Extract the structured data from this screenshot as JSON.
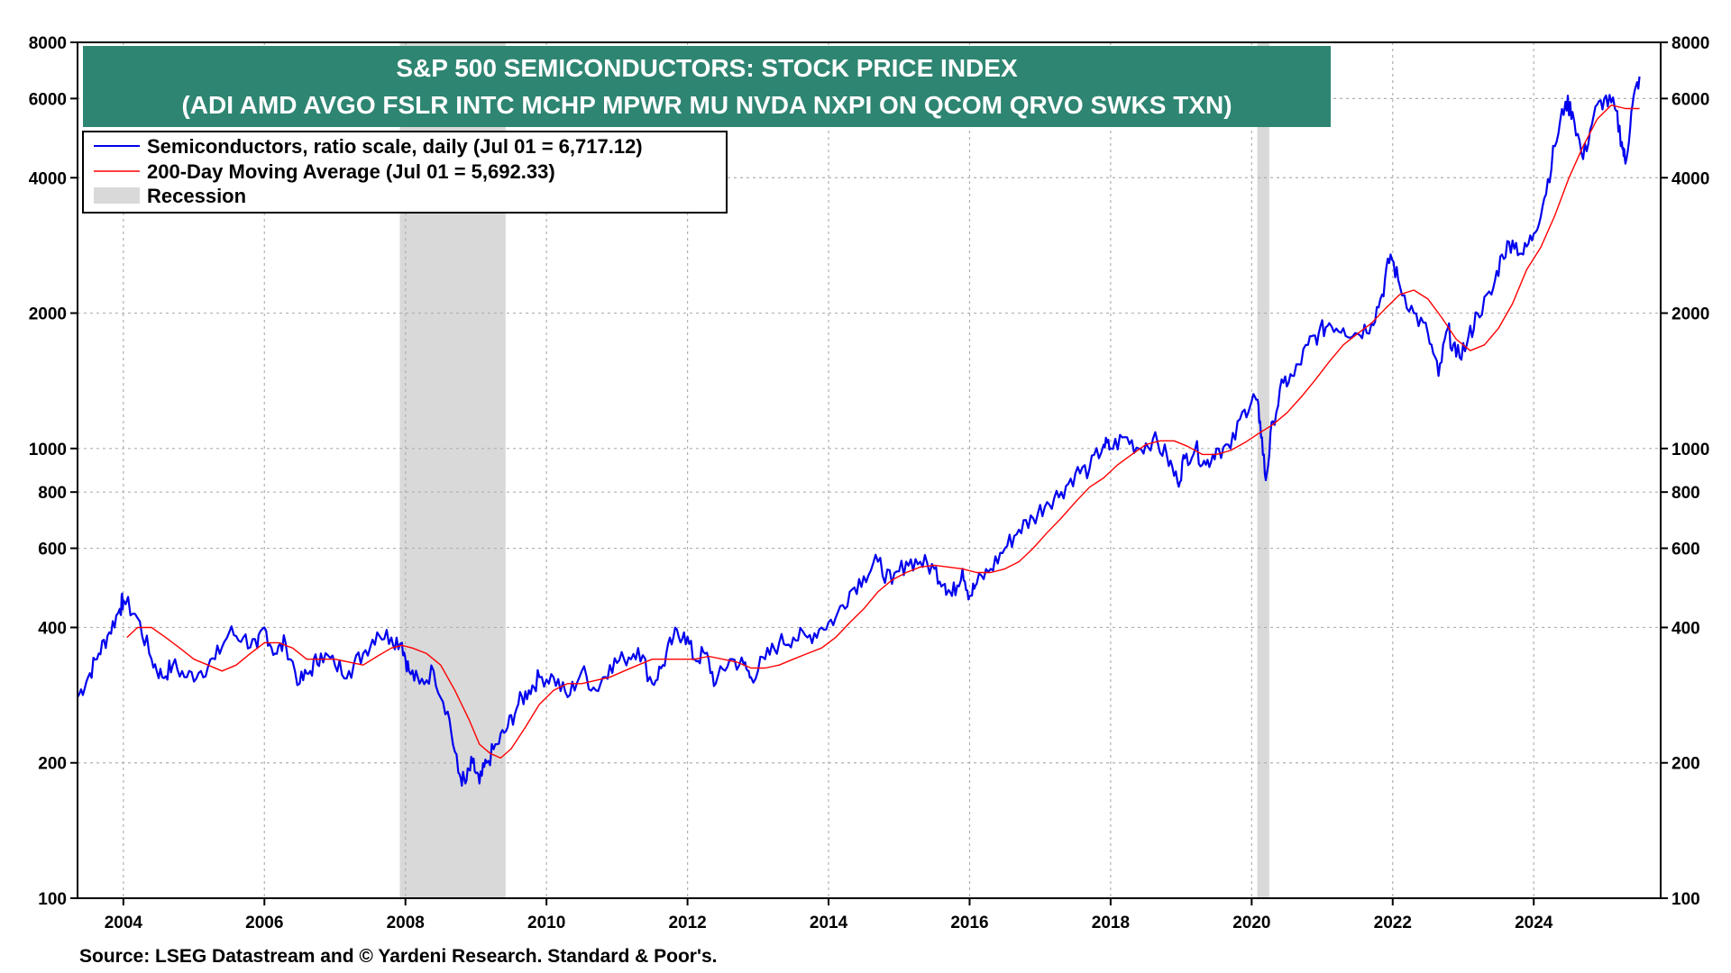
{
  "chart_data": {
    "type": "line",
    "title": "S&P 500 SEMICONDUCTORS: STOCK PRICE INDEX",
    "subtitle": "(ADI AMD AVGO FSLR INTC MCHP MPWR MU NVDA NXPI ON QCOM QRVO SWKS TXN)",
    "source": "Source: LSEG Datastream and © Yardeni Research. Standard & Poor's.",
    "y_scale": "log",
    "ylim": [
      100,
      8000
    ],
    "xlim": [
      2003.35,
      2025.8
    ],
    "grid": true,
    "legend_position": "top-left",
    "y_ticks": [
      {
        "value": 100,
        "label": "100"
      },
      {
        "value": 200,
        "label": "200"
      },
      {
        "value": 400,
        "label": "400"
      },
      {
        "value": 600,
        "label": "600"
      },
      {
        "value": 800,
        "label": "800"
      },
      {
        "value": 1000,
        "label": "1000"
      },
      {
        "value": 2000,
        "label": "2000"
      },
      {
        "value": 4000,
        "label": "4000"
      },
      {
        "value": 6000,
        "label": "6000"
      },
      {
        "value": 8000,
        "label": "8000"
      }
    ],
    "x_ticks": [
      {
        "value": 2004,
        "label": "2004"
      },
      {
        "value": 2006,
        "label": "2006"
      },
      {
        "value": 2008,
        "label": "2008"
      },
      {
        "value": 2010,
        "label": "2010"
      },
      {
        "value": 2012,
        "label": "2012"
      },
      {
        "value": 2014,
        "label": "2014"
      },
      {
        "value": 2016,
        "label": "2016"
      },
      {
        "value": 2018,
        "label": "2018"
      },
      {
        "value": 2020,
        "label": "2020"
      },
      {
        "value": 2022,
        "label": "2022"
      },
      {
        "value": 2024,
        "label": "2024"
      }
    ],
    "recessions": [
      {
        "start": 2007.92,
        "end": 2009.42
      },
      {
        "start": 2020.08,
        "end": 2020.25
      }
    ],
    "legend": [
      {
        "label": "Semiconductors, ratio scale, daily (Jul 01 = 6,717.12)",
        "color": "#0000ee",
        "kind": "line"
      },
      {
        "label": "200-Day Moving Average (Jul 01 = 5,692.33)",
        "color": "#ff0000",
        "kind": "line"
      },
      {
        "label": "Recession",
        "color": "#d9d9d9",
        "kind": "box"
      }
    ],
    "colors": {
      "title_bg": "#2e8572",
      "recession": "#d9d9d9",
      "grid": "#b0b0b0"
    },
    "series": [
      {
        "name": "Semiconductors, ratio scale, daily (Jul 01 = 6,717.12)",
        "color": "#0000ee",
        "x": [
          2003.35,
          2003.5,
          2003.65,
          2003.8,
          2003.95,
          2004.0,
          2004.2,
          2004.4,
          2004.55,
          2004.7,
          2004.9,
          2005.1,
          2005.3,
          2005.5,
          2005.7,
          2005.9,
          2006.0,
          2006.15,
          2006.3,
          2006.5,
          2006.65,
          2006.8,
          2007.0,
          2007.2,
          2007.4,
          2007.6,
          2007.8,
          2007.95,
          2008.05,
          2008.2,
          2008.4,
          2008.6,
          2008.75,
          2008.85,
          2008.95,
          2009.05,
          2009.15,
          2009.3,
          2009.45,
          2009.6,
          2009.75,
          2009.9,
          2010.1,
          2010.3,
          2010.5,
          2010.7,
          2010.9,
          2011.1,
          2011.3,
          2011.5,
          2011.65,
          2011.8,
          2011.95,
          2012.1,
          2012.25,
          2012.4,
          2012.6,
          2012.8,
          2012.9,
          2013.1,
          2013.3,
          2013.5,
          2013.7,
          2013.9,
          2014.1,
          2014.3,
          2014.5,
          2014.7,
          2014.9,
          2015.1,
          2015.3,
          2015.5,
          2015.65,
          2015.75,
          2015.9,
          2016.0,
          2016.1,
          2016.3,
          2016.5,
          2016.7,
          2016.9,
          2017.1,
          2017.3,
          2017.5,
          2017.7,
          2017.9,
          2018.0,
          2018.2,
          2018.4,
          2018.6,
          2018.8,
          2018.95,
          2019.05,
          2019.2,
          2019.35,
          2019.5,
          2019.7,
          2019.9,
          2020.05,
          2020.12,
          2020.2,
          2020.3,
          2020.45,
          2020.6,
          2020.8,
          2020.95,
          2021.1,
          2021.3,
          2021.5,
          2021.7,
          2021.85,
          2021.97,
          2022.1,
          2022.3,
          2022.5,
          2022.65,
          2022.78,
          2022.9,
          2023.05,
          2023.2,
          2023.4,
          2023.55,
          2023.7,
          2023.85,
          2024.0,
          2024.15,
          2024.3,
          2024.45,
          2024.55,
          2024.7,
          2024.85,
          2025.0,
          2025.15,
          2025.25,
          2025.3,
          2025.4,
          2025.5
        ],
        "values": [
          280,
          310,
          350,
          390,
          440,
          460,
          420,
          340,
          310,
          330,
          310,
          320,
          340,
          390,
          380,
          360,
          400,
          350,
          370,
          300,
          320,
          350,
          330,
          320,
          350,
          390,
          380,
          370,
          320,
          300,
          320,
          260,
          190,
          180,
          200,
          180,
          200,
          220,
          240,
          270,
          290,
          310,
          310,
          280,
          320,
          290,
          330,
          340,
          360,
          300,
          330,
          380,
          390,
          340,
          350,
          300,
          340,
          330,
          310,
          340,
          370,
          380,
          380,
          400,
          420,
          480,
          520,
          560,
          500,
          560,
          560,
          540,
          500,
          470,
          540,
          470,
          500,
          540,
          600,
          660,
          700,
          760,
          800,
          880,
          900,
          1020,
          1000,
          1060,
          1000,
          1050,
          960,
          840,
          950,
          1000,
          920,
          1000,
          1000,
          1220,
          1300,
          1150,
          850,
          1150,
          1400,
          1450,
          1700,
          1800,
          1900,
          1850,
          1800,
          1900,
          2200,
          2700,
          2300,
          2000,
          1800,
          1450,
          1850,
          1600,
          1700,
          2000,
          2200,
          2700,
          2900,
          2700,
          3000,
          3600,
          4700,
          5900,
          5600,
          4400,
          5500,
          6000,
          5700,
          4800,
          4300,
          5800,
          6717
        ]
      },
      {
        "name": "200-Day Moving Average (Jul 01 = 5,692.33)",
        "color": "#ff0000",
        "x": [
          2004.05,
          2004.2,
          2004.4,
          2004.6,
          2004.8,
          2005.0,
          2005.2,
          2005.4,
          2005.6,
          2005.8,
          2006.0,
          2006.2,
          2006.4,
          2006.6,
          2006.8,
          2007.0,
          2007.2,
          2007.4,
          2007.6,
          2007.8,
          2007.95,
          2008.1,
          2008.3,
          2008.5,
          2008.7,
          2008.9,
          2009.05,
          2009.2,
          2009.35,
          2009.5,
          2009.7,
          2009.9,
          2010.1,
          2010.3,
          2010.5,
          2010.7,
          2010.9,
          2011.1,
          2011.3,
          2011.5,
          2011.7,
          2011.9,
          2012.1,
          2012.3,
          2012.5,
          2012.7,
          2012.9,
          2013.1,
          2013.3,
          2013.5,
          2013.7,
          2013.9,
          2014.1,
          2014.3,
          2014.5,
          2014.7,
          2014.9,
          2015.1,
          2015.3,
          2015.5,
          2015.7,
          2015.9,
          2016.1,
          2016.3,
          2016.5,
          2016.7,
          2016.9,
          2017.1,
          2017.3,
          2017.5,
          2017.7,
          2017.9,
          2018.1,
          2018.3,
          2018.5,
          2018.7,
          2018.9,
          2019.1,
          2019.3,
          2019.5,
          2019.7,
          2019.9,
          2020.1,
          2020.3,
          2020.5,
          2020.7,
          2020.9,
          2021.1,
          2021.3,
          2021.5,
          2021.7,
          2021.9,
          2022.1,
          2022.3,
          2022.5,
          2022.7,
          2022.9,
          2023.1,
          2023.3,
          2023.5,
          2023.7,
          2023.9,
          2024.1,
          2024.3,
          2024.5,
          2024.7,
          2024.9,
          2025.1,
          2025.3,
          2025.5
        ],
        "values": [
          380,
          400,
          400,
          380,
          360,
          340,
          330,
          320,
          330,
          350,
          370,
          370,
          360,
          340,
          340,
          340,
          335,
          330,
          345,
          360,
          365,
          360,
          350,
          330,
          290,
          250,
          220,
          210,
          205,
          215,
          240,
          270,
          290,
          300,
          300,
          305,
          310,
          320,
          330,
          340,
          340,
          340,
          340,
          345,
          340,
          335,
          325,
          325,
          330,
          340,
          350,
          360,
          380,
          410,
          440,
          480,
          510,
          530,
          545,
          550,
          545,
          540,
          530,
          530,
          540,
          560,
          600,
          650,
          700,
          760,
          820,
          860,
          920,
          970,
          1020,
          1040,
          1040,
          1010,
          970,
          970,
          990,
          1030,
          1080,
          1130,
          1200,
          1300,
          1420,
          1560,
          1700,
          1800,
          1900,
          2050,
          2200,
          2250,
          2150,
          1950,
          1750,
          1650,
          1700,
          1850,
          2100,
          2500,
          2800,
          3300,
          4000,
          4700,
          5400,
          5800,
          5700,
          5700
        ]
      }
    ]
  }
}
